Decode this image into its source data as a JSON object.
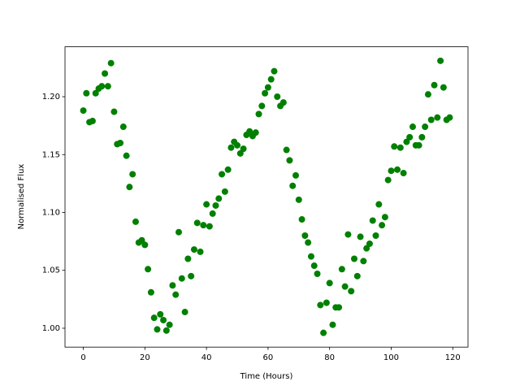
{
  "chart_data": {
    "type": "scatter",
    "x_label": "Time (Hours)",
    "y_label": "Normalised Flux",
    "color": "#008000",
    "x": [
      0,
      1,
      2,
      3,
      4,
      5,
      6,
      7,
      8,
      9,
      10,
      11,
      12,
      13,
      14,
      15,
      16,
      17,
      18,
      19,
      20,
      21,
      22,
      23,
      24,
      25,
      26,
      27,
      28,
      29,
      30,
      31,
      32,
      33,
      34,
      35,
      36,
      37,
      38,
      39,
      40,
      41,
      42,
      43,
      44,
      45,
      46,
      47,
      48,
      49,
      50,
      51,
      52,
      53,
      54,
      55,
      56,
      57,
      58,
      59,
      60,
      61,
      62,
      63,
      64,
      65,
      66,
      67,
      68,
      69,
      70,
      71,
      72,
      73,
      74,
      75,
      76,
      77,
      78,
      79,
      80,
      81,
      82,
      83,
      84,
      85,
      86,
      87,
      88,
      89,
      90,
      91,
      92,
      93,
      94,
      95,
      96,
      97,
      98,
      99,
      100,
      101,
      102,
      103,
      104,
      105,
      106,
      107,
      108,
      109,
      110,
      111,
      112,
      113,
      114,
      115,
      116,
      117,
      118,
      119
    ],
    "values": [
      1.188,
      1.203,
      1.178,
      1.179,
      1.203,
      1.207,
      1.209,
      1.22,
      1.209,
      1.229,
      1.187,
      1.159,
      1.16,
      1.174,
      1.149,
      1.122,
      1.133,
      1.092,
      1.074,
      1.076,
      1.072,
      1.051,
      1.031,
      1.009,
      0.999,
      1.012,
      1.007,
      0.998,
      1.003,
      1.037,
      1.029,
      1.083,
      1.043,
      1.014,
      1.06,
      1.045,
      1.068,
      1.091,
      1.066,
      1.089,
      1.107,
      1.088,
      1.099,
      1.106,
      1.112,
      1.133,
      1.118,
      1.137,
      1.156,
      1.161,
      1.158,
      1.151,
      1.155,
      1.167,
      1.17,
      1.166,
      1.169,
      1.185,
      1.192,
      1.203,
      1.208,
      1.215,
      1.222,
      1.2,
      1.192,
      1.195,
      1.154,
      1.145,
      1.123,
      1.132,
      1.111,
      1.094,
      1.08,
      1.074,
      1.062,
      1.054,
      1.047,
      1.02,
      0.996,
      1.022,
      1.039,
      1.003,
      1.018,
      1.018,
      1.051,
      1.036,
      1.081,
      1.032,
      1.06,
      1.045,
      1.079,
      1.058,
      1.069,
      1.073,
      1.093,
      1.08,
      1.107,
      1.089,
      1.096,
      1.128,
      1.136,
      1.157,
      1.137,
      1.156,
      1.134,
      1.161,
      1.165,
      1.174,
      1.158,
      1.158,
      1.165,
      1.174,
      1.202,
      1.18,
      1.21,
      1.182,
      1.231,
      1.208,
      1.18,
      1.182
    ],
    "xlim": [
      -5.95,
      124.95
    ],
    "xticks": [
      0,
      20,
      40,
      60,
      80,
      100,
      120
    ],
    "ylim": [
      0.9837,
      1.2431
    ],
    "yticks": [
      {
        "value": 1.0,
        "label": "1.00"
      },
      {
        "value": 1.05,
        "label": "1.05"
      },
      {
        "value": 1.1,
        "label": "1.10"
      },
      {
        "value": 1.15,
        "label": "1.15"
      },
      {
        "value": 1.2,
        "label": "1.20"
      }
    ]
  }
}
